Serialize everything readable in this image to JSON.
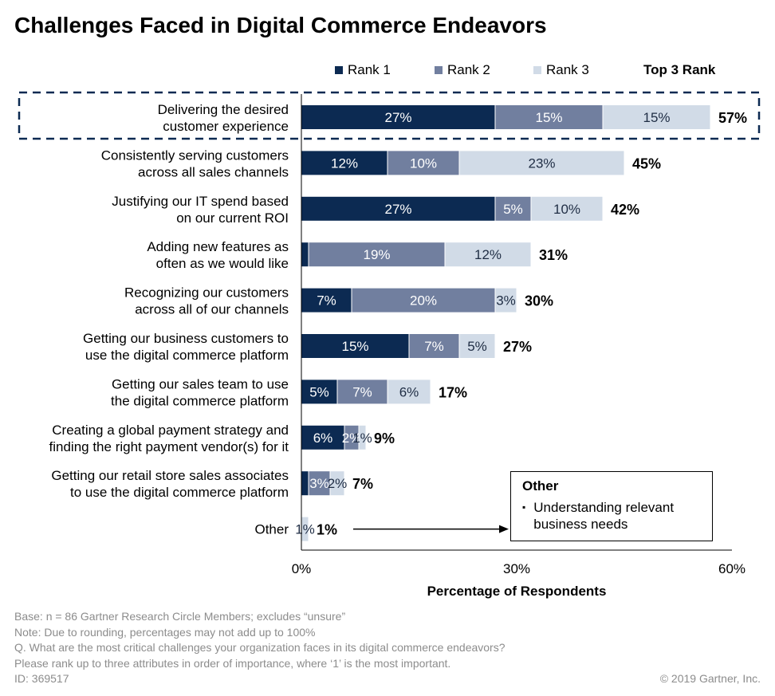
{
  "title": "Challenges Faced in Digital Commerce Endeavors",
  "legend": {
    "rank1": "Rank 1",
    "rank2": "Rank 2",
    "rank3": "Rank 3",
    "top3": "Top 3 Rank"
  },
  "colors": {
    "rank1": "#0c2a52",
    "rank2": "#717f9f",
    "rank3": "#d1dbe7",
    "highlight_border": "#0c2a52"
  },
  "chart_data": {
    "type": "bar",
    "orientation": "horizontal",
    "stacked": true,
    "categories": [
      [
        "Delivering the desired",
        "customer experience"
      ],
      [
        "Consistently serving customers",
        "across all sales channels"
      ],
      [
        "Justifying our IT spend based",
        "on our current ROI"
      ],
      [
        "Adding new features as",
        "often as we would like"
      ],
      [
        "Recognizing our customers",
        "across all of our channels"
      ],
      [
        "Getting our business customers to",
        "use the digital commerce platform"
      ],
      [
        "Getting our sales team to use",
        "the digital commerce platform"
      ],
      [
        "Creating a global payment strategy and",
        "finding the right payment vendor(s) for it"
      ],
      [
        "Getting our retail store sales associates",
        "to use the digital commerce platform"
      ],
      [
        "Other"
      ]
    ],
    "series": [
      {
        "name": "Rank 1",
        "values": [
          27,
          12,
          27,
          1,
          7,
          15,
          5,
          6,
          1,
          0
        ],
        "labels": [
          "27%",
          "12%",
          "27%",
          "",
          "7%",
          "15%",
          "5%",
          "6%",
          "",
          ""
        ]
      },
      {
        "name": "Rank 2",
        "values": [
          15,
          10,
          5,
          19,
          20,
          7,
          7,
          2,
          3,
          0
        ],
        "labels": [
          "15%",
          "10%",
          "5%",
          "19%",
          "20%",
          "7%",
          "7%",
          "2%",
          "3%",
          ""
        ]
      },
      {
        "name": "Rank 3",
        "values": [
          15,
          23,
          10,
          12,
          3,
          5,
          6,
          1,
          2,
          1
        ],
        "labels": [
          "15%",
          "23%",
          "10%",
          "12%",
          "3%",
          "5%",
          "6%",
          "1%",
          "2%",
          "1%"
        ]
      }
    ],
    "totals": [
      "57%",
      "45%",
      "42%",
      "31%",
      "30%",
      "27%",
      "17%",
      "9%",
      "7%",
      "1%"
    ],
    "highlighted_category_index": 0,
    "xlabel": "Percentage of Respondents",
    "xlim": [
      0,
      60
    ],
    "xticks": [
      0,
      30,
      60
    ],
    "xtick_labels": [
      "0%",
      "30%",
      "60%"
    ],
    "grid": false,
    "legend_position": "top"
  },
  "note": {
    "title": "Other",
    "items": [
      "Understanding relevant business needs"
    ],
    "item_lines": [
      "Understanding relevant",
      "business needs"
    ]
  },
  "footer": {
    "lines": [
      "Base: n = 86 Gartner Research Circle Members; excludes “unsure”",
      "Note: Due to rounding, percentages may not add up to 100%",
      "Q. What are the most critical challenges your organization faces in its digital commerce endeavors?",
      "Please rank up to three attributes in order of importance, where ‘1’ is the most important.",
      "ID: 369517"
    ],
    "copyright": "© 2019 Gartner, Inc."
  }
}
